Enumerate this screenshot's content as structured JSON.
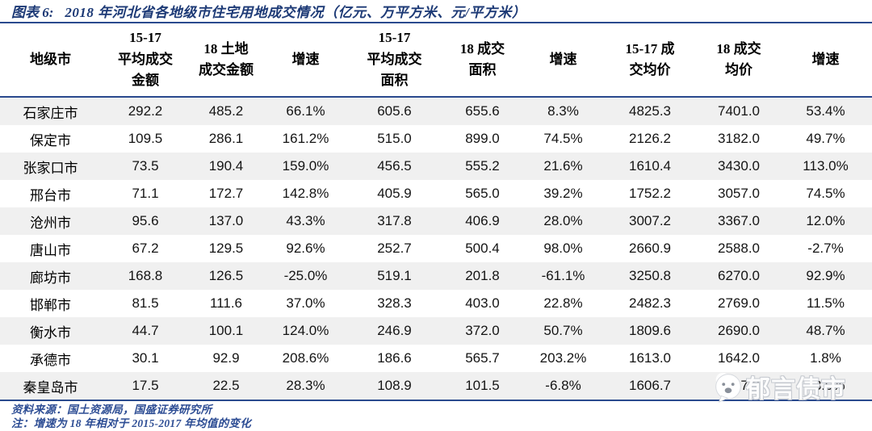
{
  "title": {
    "prefix": "图表 6:",
    "text": "2018 年河北省各地级市住宅用地成交情况（亿元、万平方米、元/平方米）"
  },
  "table": {
    "headers": [
      "地级市",
      "15-17\n平均成交\n金额",
      "18 土地\n成交金额",
      "增速",
      "15-17\n平均成交\n面积",
      "18 成交\n面积",
      "增速",
      "15-17 成\n交均价",
      "18 成交\n均价",
      "增速"
    ],
    "rows": [
      {
        "cells": [
          "石家庄市",
          "292.2",
          "485.2",
          "66.1%",
          "605.6",
          "655.6",
          "8.3%",
          "4825.3",
          "7401.0",
          "53.4%"
        ]
      },
      {
        "cells": [
          "保定市",
          "109.5",
          "286.1",
          "161.2%",
          "515.0",
          "899.0",
          "74.5%",
          "2126.2",
          "3182.0",
          "49.7%"
        ]
      },
      {
        "cells": [
          "张家口市",
          "73.5",
          "190.4",
          "159.0%",
          "456.5",
          "555.2",
          "21.6%",
          "1610.4",
          "3430.0",
          "113.0%"
        ]
      },
      {
        "cells": [
          "邢台市",
          "71.1",
          "172.7",
          "142.8%",
          "405.9",
          "565.0",
          "39.2%",
          "1752.2",
          "3057.0",
          "74.5%"
        ]
      },
      {
        "cells": [
          "沧州市",
          "95.6",
          "137.0",
          "43.3%",
          "317.8",
          "406.9",
          "28.0%",
          "3007.2",
          "3367.0",
          "12.0%"
        ]
      },
      {
        "cells": [
          "唐山市",
          "67.2",
          "129.5",
          "92.6%",
          "252.7",
          "500.4",
          "98.0%",
          "2660.9",
          "2588.0",
          "-2.7%"
        ]
      },
      {
        "cells": [
          "廊坊市",
          "168.8",
          "126.5",
          "-25.0%",
          "519.1",
          "201.8",
          "-61.1%",
          "3250.8",
          "6270.0",
          "92.9%"
        ]
      },
      {
        "cells": [
          "邯郸市",
          "81.5",
          "111.6",
          "37.0%",
          "328.3",
          "403.0",
          "22.8%",
          "2482.3",
          "2769.0",
          "11.5%"
        ]
      },
      {
        "cells": [
          "衡水市",
          "44.7",
          "100.1",
          "124.0%",
          "246.9",
          "372.0",
          "50.7%",
          "1809.6",
          "2690.0",
          "48.7%"
        ]
      },
      {
        "cells": [
          "承德市",
          "30.1",
          "92.9",
          "208.6%",
          "186.6",
          "565.7",
          "203.2%",
          "1613.0",
          "1642.0",
          "1.8%"
        ]
      },
      {
        "cells": [
          "秦皇岛市",
          "17.5",
          "22.5",
          "28.3%",
          "108.9",
          "101.5",
          "-6.8%",
          "1606.7",
          "2217.0",
          "38.0%"
        ]
      }
    ]
  },
  "footer": {
    "source": "资料来源：国土资源局，国盛证券研究所",
    "note": "注：增速为 18 年相对于 2015-2017 年均值的变化"
  },
  "watermark": {
    "label": "郁言债市",
    "icon": "speech-bubble-face-icon"
  },
  "colors": {
    "navy_title": "#1d3a76",
    "rule_line": "#2a4a8e",
    "row_stripe": "#f0f0f0",
    "footer_text": "#2d4d94"
  }
}
